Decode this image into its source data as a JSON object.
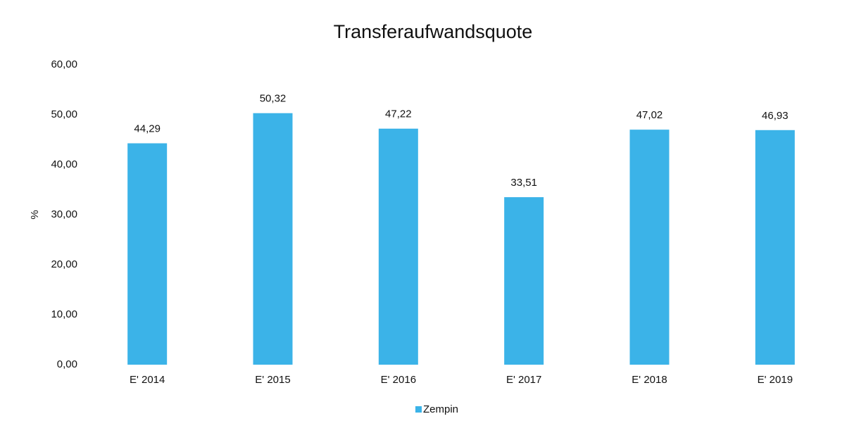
{
  "chart_data": {
    "type": "bar",
    "title": "Transferaufwandsquote",
    "ylabel": "%",
    "categories": [
      "E' 2014",
      "E' 2015",
      "E' 2016",
      "E' 2017",
      "E' 2018",
      "E' 2019"
    ],
    "series": [
      {
        "name": "Zempin",
        "color": "#3bb3e8",
        "values": [
          44.29,
          50.32,
          47.22,
          33.51,
          47.02,
          46.93
        ],
        "value_labels": [
          "44,29",
          "50,32",
          "47,22",
          "33,51",
          "47,02",
          "46,93"
        ]
      }
    ],
    "ylim": [
      0,
      60
    ],
    "yticks": [
      {
        "value": 0,
        "label": "0,00"
      },
      {
        "value": 10,
        "label": "10,00"
      },
      {
        "value": 20,
        "label": "20,00"
      },
      {
        "value": 30,
        "label": "30,00"
      },
      {
        "value": 40,
        "label": "40,00"
      },
      {
        "value": 50,
        "label": "50,00"
      },
      {
        "value": 60,
        "label": "60,00"
      }
    ],
    "grid": false,
    "legend": "bottom"
  }
}
